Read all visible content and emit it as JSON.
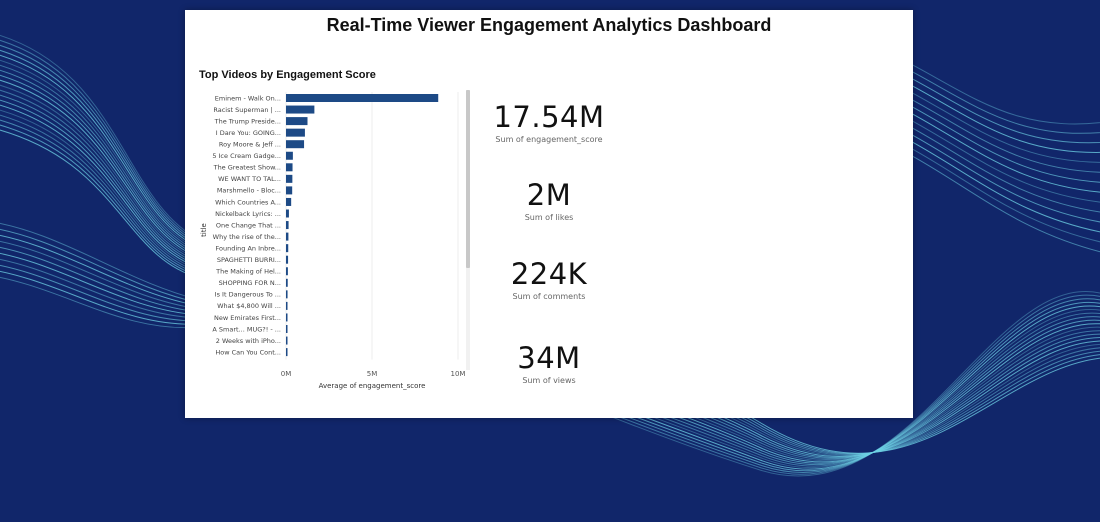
{
  "dashboard": {
    "title": "Real-Time Viewer Engagement Analytics Dashboard",
    "background_color": "#11266a",
    "accent_color": "#6fd3e6"
  },
  "chart_data": {
    "type": "bar",
    "orientation": "horizontal",
    "title": "Top Videos by Engagement Score",
    "xlabel": "Average of engagement_score",
    "ylabel": "title",
    "xlim": [
      0,
      10000000
    ],
    "xticks": [
      0,
      5000000,
      10000000
    ],
    "xtick_labels": [
      "0M",
      "5M",
      "10M"
    ],
    "bar_color": "#1d4a86",
    "categories": [
      "Eminem - Walk On...",
      "Racist Superman | ...",
      "The Trump Preside...",
      "I Dare You: GOING...",
      "Roy Moore & Jeff ...",
      "5 Ice Cream Gadge...",
      "The Greatest Show...",
      "WE WANT TO TAL...",
      "Marshmello - Bloc...",
      "Which Countries A...",
      "Nickelback Lyrics: ...",
      "One Change That ...",
      "Why the rise of the...",
      "Founding An Inbre...",
      "SPAGHETTI BURRI...",
      "The Making of Hel...",
      "SHOPPING FOR N...",
      "Is It Dangerous To ...",
      "What $4,800 Will ...",
      "New Emirates First...",
      "A Smart... MUG?! - ...",
      "2 Weeks with iPho...",
      "How Can You Cont..."
    ],
    "values": [
      8850000,
      1650000,
      1250000,
      1100000,
      1050000,
      400000,
      380000,
      370000,
      360000,
      300000,
      170000,
      150000,
      140000,
      130000,
      120000,
      110000,
      100000,
      90000,
      85000,
      80000,
      75000,
      70000,
      65000
    ]
  },
  "kpis": [
    {
      "value": "17.54M",
      "label": "Sum of engagement_score"
    },
    {
      "value": "2M",
      "label": "Sum of likes"
    },
    {
      "value": "224K",
      "label": "Sum of comments"
    },
    {
      "value": "34M",
      "label": "Sum of views"
    }
  ]
}
